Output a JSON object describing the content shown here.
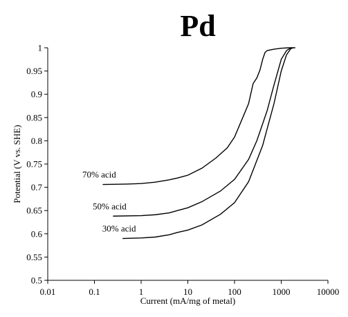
{
  "chart_data": {
    "type": "line",
    "title": "Pd",
    "xlabel": "Current (mA/mg of metal)",
    "ylabel": "Potential (V vs. SHE)",
    "xscale": "log",
    "xlim": [
      0.01,
      10000
    ],
    "ylim": [
      0.5,
      1.0
    ],
    "x_ticks": [
      0.01,
      0.1,
      1,
      10,
      100,
      1000,
      10000
    ],
    "x_tick_labels": [
      "0.01",
      "0.1",
      "1",
      "10",
      "100",
      "1000",
      "10000"
    ],
    "y_ticks": [
      0.5,
      0.55,
      0.6,
      0.65,
      0.7,
      0.75,
      0.8,
      0.85,
      0.9,
      0.95,
      1.0
    ],
    "y_tick_labels": [
      "0.5",
      "0.55",
      "0.6",
      "0.65",
      "0.7",
      "0.75",
      "0.8",
      "0.85",
      "0.9",
      "0.95",
      "1"
    ],
    "grid": false,
    "legend": "inline labels",
    "series": [
      {
        "name": "70% acid",
        "x": [
          0.15,
          0.5,
          1,
          2,
          4,
          6,
          10,
          20,
          40,
          70,
          100,
          150,
          200,
          250,
          300,
          350,
          400,
          450,
          500,
          700,
          1000,
          1500,
          2000
        ],
        "y": [
          0.706,
          0.707,
          0.708,
          0.711,
          0.716,
          0.72,
          0.726,
          0.741,
          0.763,
          0.785,
          0.808,
          0.85,
          0.88,
          0.923,
          0.935,
          0.952,
          0.975,
          0.99,
          0.994,
          0.997,
          0.999,
          1.0,
          1.0
        ]
      },
      {
        "name": "50% acid",
        "x": [
          0.25,
          1,
          2,
          4,
          6,
          10,
          20,
          50,
          100,
          200,
          300,
          500,
          700,
          1000,
          1300,
          1500,
          1800
        ],
        "y": [
          0.638,
          0.639,
          0.641,
          0.645,
          0.65,
          0.656,
          0.669,
          0.692,
          0.717,
          0.76,
          0.8,
          0.865,
          0.92,
          0.975,
          0.994,
          0.998,
          1.0
        ]
      },
      {
        "name": "30% acid",
        "x": [
          0.4,
          1,
          2,
          4,
          6,
          10,
          20,
          50,
          100,
          200,
          400,
          700,
          1000,
          1300,
          1600,
          1800
        ],
        "y": [
          0.59,
          0.591,
          0.593,
          0.598,
          0.603,
          0.608,
          0.619,
          0.642,
          0.667,
          0.712,
          0.79,
          0.88,
          0.95,
          0.985,
          0.998,
          1.0
        ]
      }
    ]
  }
}
